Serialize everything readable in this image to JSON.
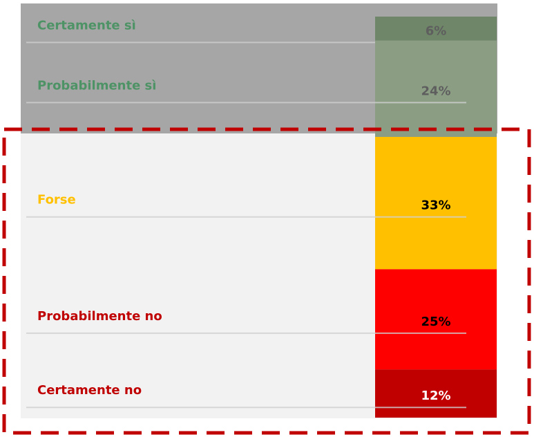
{
  "chart_data": {
    "type": "stacked_column",
    "categories": [
      "Certamente sì",
      "Probabilmente sì",
      "Forse",
      "Probabilmente no",
      "Certamente no"
    ],
    "values": [
      6,
      24,
      33,
      25,
      12
    ],
    "value_labels": [
      "6%",
      "24%",
      "33%",
      "25%",
      "12%"
    ],
    "colors": [
      "#6f8669",
      "#8b9e84",
      "#ffc000",
      "#ff0000",
      "#c00000"
    ],
    "label_colors": [
      "#4d9366",
      "#4d9366",
      "#ffc000",
      "#c00000",
      "#c00000"
    ],
    "value_label_colors": [
      "#5e5e5e",
      "#5e5e5e",
      "#000000",
      "#000000",
      "#ffffff"
    ],
    "ylim": [
      0,
      100
    ]
  }
}
